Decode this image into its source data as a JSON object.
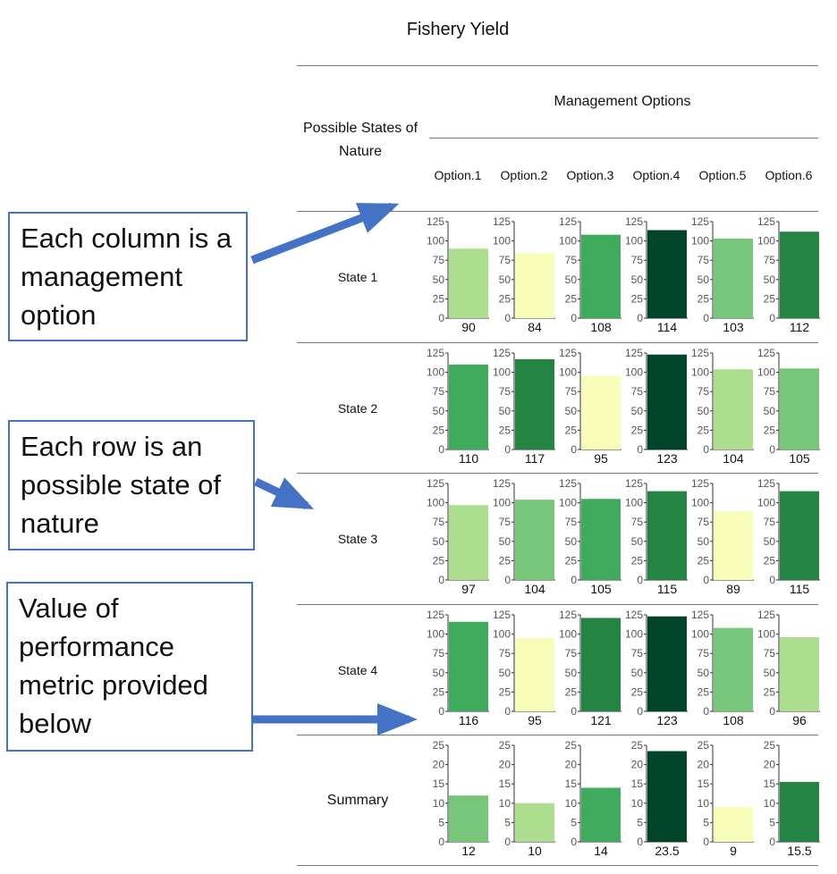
{
  "title": "Fishery Yield",
  "management_header": "Management Options",
  "states_header": "Possible States of Nature",
  "options": [
    "Option.1",
    "Option.2",
    "Option.3",
    "Option.4",
    "Option.5",
    "Option.6"
  ],
  "states": [
    "State 1",
    "State 2",
    "State 3",
    "State 4"
  ],
  "summary_label": "Summary",
  "annotations": {
    "columns": "Each column is a management option",
    "rows": "Each row is an possible state of nature",
    "values": "Value of performance metric provided below"
  },
  "colors": {
    "arrow": "#4472c4",
    "box_border": "#4472c4",
    "scale": [
      "#f7fcb9",
      "#addd8e",
      "#78c679",
      "#41ab5d",
      "#238443",
      "#004529"
    ]
  },
  "chart_data": {
    "type": "bar",
    "categories": [
      "Option.1",
      "Option.2",
      "Option.3",
      "Option.4",
      "Option.5",
      "Option.6"
    ],
    "rows": [
      {
        "name": "State 1",
        "values": [
          90,
          84,
          108,
          114,
          103,
          112
        ],
        "value_labels": [
          "90",
          "84",
          "108",
          "114",
          "103",
          "112"
        ],
        "ylim": [
          0,
          125
        ],
        "yticks": [
          "0",
          "25",
          "50",
          "75",
          "100",
          "125"
        ],
        "color_levels": [
          1,
          0,
          3,
          5,
          2,
          4
        ]
      },
      {
        "name": "State 2",
        "values": [
          110,
          117,
          95,
          123,
          104,
          105
        ],
        "value_labels": [
          "110",
          "117",
          "95",
          "123",
          "104",
          "105"
        ],
        "ylim": [
          0,
          125
        ],
        "yticks": [
          "0",
          "25",
          "50",
          "75",
          "100",
          "125"
        ],
        "color_levels": [
          3,
          4,
          0,
          5,
          1,
          2
        ]
      },
      {
        "name": "State 3",
        "values": [
          97,
          104,
          105,
          115,
          89,
          115
        ],
        "value_labels": [
          "97",
          "104",
          "105",
          "115",
          "89",
          "115"
        ],
        "ylim": [
          0,
          125
        ],
        "yticks": [
          "0",
          "25",
          "50",
          "75",
          "100",
          "125"
        ],
        "color_levels": [
          1,
          2,
          3,
          4,
          0,
          4
        ]
      },
      {
        "name": "State 4",
        "values": [
          116,
          95,
          121,
          123,
          108,
          96
        ],
        "value_labels": [
          "116",
          "95",
          "121",
          "123",
          "108",
          "96"
        ],
        "ylim": [
          0,
          125
        ],
        "yticks": [
          "0",
          "25",
          "50",
          "75",
          "100",
          "125"
        ],
        "color_levels": [
          3,
          0,
          4,
          5,
          2,
          1
        ]
      },
      {
        "name": "Summary",
        "values": [
          12,
          10,
          14,
          23.5,
          9,
          15.5
        ],
        "value_labels": [
          "12",
          "10",
          "14",
          "23.5",
          "9",
          "15.5"
        ],
        "ylim": [
          0,
          25
        ],
        "yticks": [
          "0",
          "5",
          "10",
          "15",
          "20",
          "25"
        ],
        "color_levels": [
          2,
          1,
          3,
          5,
          0,
          4
        ]
      }
    ],
    "grid": false
  }
}
